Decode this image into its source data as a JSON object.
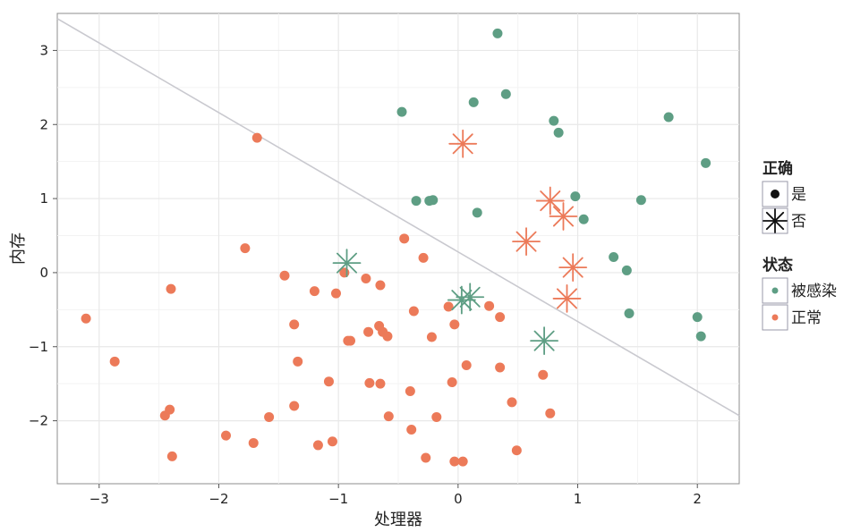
{
  "chart_data": {
    "type": "scatter",
    "xlabel": "处理器",
    "ylabel": "内存",
    "xlim": [
      -3.35,
      2.35
    ],
    "ylim": [
      -2.85,
      3.5
    ],
    "xticks": [
      -3,
      -2,
      -1,
      0,
      1,
      2
    ],
    "yticks": [
      -2,
      -1,
      0,
      1,
      2,
      3
    ],
    "xtick_labels": [
      "−3",
      "−2",
      "−1",
      "0",
      "1",
      "2"
    ],
    "ytick_labels": [
      "−2",
      "−1",
      "0",
      "1",
      "2",
      "3"
    ],
    "grid": true,
    "boundary_line": {
      "x": [
        -3.35,
        2.35
      ],
      "y": [
        3.43,
        -1.93
      ],
      "color": "#c9c9cf"
    },
    "legend": {
      "placement": "right",
      "correct": {
        "title": "正确",
        "items": [
          {
            "label": "是",
            "shape": "circle"
          },
          {
            "label": "否",
            "shape": "asterisk"
          }
        ]
      },
      "status": {
        "title": "状态",
        "items": [
          {
            "label": "被感染",
            "color": "#5e9e84"
          },
          {
            "label": "正常",
            "color": "#ec7a59"
          }
        ]
      }
    },
    "colors": {
      "infected": "#5e9e84",
      "normal": "#ec7a59"
    },
    "series": [
      {
        "name": "被感染",
        "correct": "是",
        "x": [
          0.33,
          0.4,
          0.13,
          -0.47,
          0.8,
          0.84,
          1.76,
          2.07,
          0.98,
          1.53,
          -0.35,
          -0.24,
          -0.21,
          0.16,
          1.05,
          1.3,
          1.41,
          1.43,
          2.0,
          2.03
        ],
        "y": [
          3.23,
          2.41,
          2.3,
          2.17,
          2.05,
          1.89,
          2.1,
          1.48,
          1.03,
          0.98,
          0.97,
          0.97,
          0.98,
          0.81,
          0.72,
          0.21,
          0.03,
          -0.55,
          -0.6,
          -0.86
        ]
      },
      {
        "name": "正常",
        "correct": "是",
        "x": [
          -1.68,
          -1.78,
          -0.45,
          -0.29,
          -2.4,
          -1.45,
          -1.2,
          -1.02,
          -0.95,
          -0.9,
          -0.77,
          -0.65,
          -0.37,
          -0.08,
          0.26,
          0.35,
          -1.37,
          -0.66,
          -0.63,
          -0.75,
          -0.59,
          -0.22,
          -0.03,
          -0.92,
          -2.87,
          -3.11,
          -1.34,
          -1.08,
          -0.65,
          -0.74,
          -0.4,
          -0.05,
          0.07,
          0.35,
          0.71,
          -1.37,
          -2.41,
          -2.45,
          -1.58,
          -0.58,
          -0.18,
          0.45,
          0.77,
          -1.94,
          -1.71,
          -1.17,
          -1.05,
          -0.39,
          -0.27,
          -2.39,
          -0.03,
          0.04,
          0.49
        ],
        "y": [
          1.82,
          0.33,
          0.46,
          0.2,
          -0.22,
          -0.04,
          -0.25,
          -0.28,
          0.0,
          -0.92,
          -0.08,
          -0.17,
          -0.52,
          -0.46,
          -0.45,
          -0.6,
          -0.7,
          -0.72,
          -0.8,
          -0.8,
          -0.86,
          -0.87,
          -0.7,
          -0.92,
          -1.2,
          -0.62,
          -1.2,
          -1.47,
          -1.5,
          -1.49,
          -1.6,
          -1.48,
          -1.25,
          -1.28,
          -1.38,
          -1.8,
          -1.85,
          -1.93,
          -1.95,
          -1.94,
          -1.95,
          -1.75,
          -1.9,
          -2.2,
          -2.3,
          -2.33,
          -2.28,
          -2.12,
          -2.5,
          -2.48,
          -2.55,
          -2.55,
          -2.4
        ]
      },
      {
        "name": "被感染",
        "correct": "否",
        "x": [
          -0.93,
          0.1,
          0.03,
          0.72
        ],
        "y": [
          0.13,
          -0.33,
          -0.37,
          -0.92
        ]
      },
      {
        "name": "正常",
        "correct": "否",
        "x": [
          0.04,
          0.77,
          0.88,
          0.57,
          0.96,
          0.91
        ],
        "y": [
          1.74,
          0.97,
          0.76,
          0.42,
          0.07,
          -0.35
        ]
      }
    ]
  }
}
